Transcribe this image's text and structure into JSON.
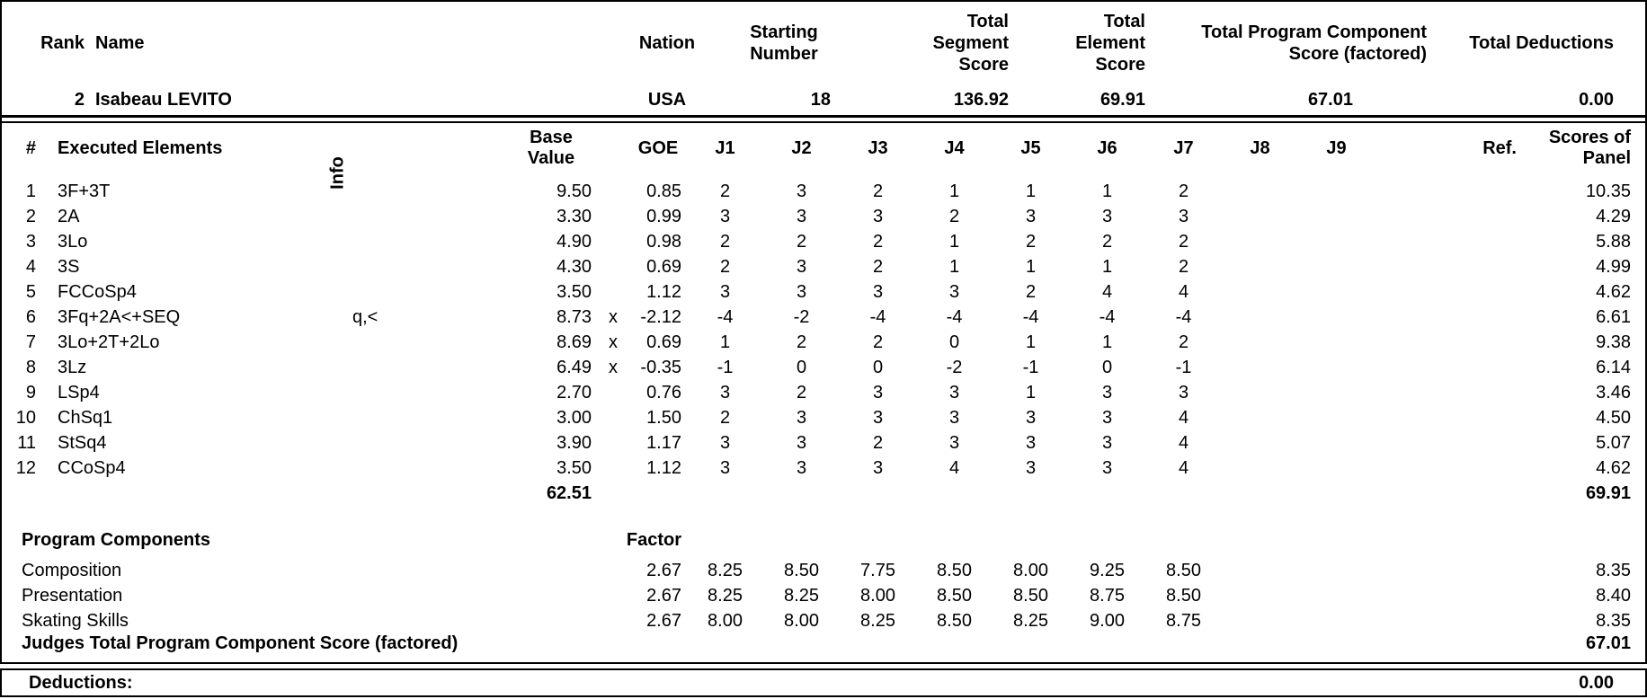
{
  "header": {
    "rank_label": "Rank",
    "name_label": "Name",
    "nation_label": "Nation",
    "starting_label": "Starting\nNumber",
    "segment_label": "Total\nSegment\nScore",
    "element_label": "Total\nElement\nScore",
    "pcs_label": "Total Program Component\nScore (factored)",
    "deductions_label": "Total Deductions"
  },
  "athlete": {
    "rank": "2",
    "name": "Isabeau LEVITO",
    "nation": "USA",
    "starting_number": "18",
    "total_segment_score": "136.92",
    "total_element_score": "69.91",
    "total_pcs_factored": "67.01",
    "total_deductions": "0.00"
  },
  "elements": {
    "headers": {
      "num": "#",
      "executed": "Executed Elements",
      "info": "Info",
      "base_value": "Base\nValue",
      "goe": "GOE",
      "j1": "J1",
      "j2": "J2",
      "j3": "J3",
      "j4": "J4",
      "j5": "J5",
      "j6": "J6",
      "j7": "J7",
      "j8": "J8",
      "j9": "J9",
      "ref": "Ref.",
      "panel": "Scores of\nPanel"
    },
    "rows": [
      {
        "num": "1",
        "name": "3F+3T",
        "info": "",
        "base_value": "9.50",
        "x": "",
        "goe": "0.85",
        "j": [
          "2",
          "3",
          "2",
          "1",
          "1",
          "1",
          "2"
        ],
        "panel": "10.35"
      },
      {
        "num": "2",
        "name": "2A",
        "info": "",
        "base_value": "3.30",
        "x": "",
        "goe": "0.99",
        "j": [
          "3",
          "3",
          "3",
          "2",
          "3",
          "3",
          "3"
        ],
        "panel": "4.29"
      },
      {
        "num": "3",
        "name": "3Lo",
        "info": "",
        "base_value": "4.90",
        "x": "",
        "goe": "0.98",
        "j": [
          "2",
          "2",
          "2",
          "1",
          "2",
          "2",
          "2"
        ],
        "panel": "5.88"
      },
      {
        "num": "4",
        "name": "3S",
        "info": "",
        "base_value": "4.30",
        "x": "",
        "goe": "0.69",
        "j": [
          "2",
          "3",
          "2",
          "1",
          "1",
          "1",
          "2"
        ],
        "panel": "4.99"
      },
      {
        "num": "5",
        "name": "FCCoSp4",
        "info": "",
        "base_value": "3.50",
        "x": "",
        "goe": "1.12",
        "j": [
          "3",
          "3",
          "3",
          "3",
          "2",
          "4",
          "4"
        ],
        "panel": "4.62"
      },
      {
        "num": "6",
        "name": "3Fq+2A<+SEQ",
        "info": "q,<",
        "base_value": "8.73",
        "x": "x",
        "goe": "-2.12",
        "j": [
          "-4",
          "-2",
          "-4",
          "-4",
          "-4",
          "-4",
          "-4"
        ],
        "panel": "6.61"
      },
      {
        "num": "7",
        "name": "3Lo+2T+2Lo",
        "info": "",
        "base_value": "8.69",
        "x": "x",
        "goe": "0.69",
        "j": [
          "1",
          "2",
          "2",
          "0",
          "1",
          "1",
          "2"
        ],
        "panel": "9.38"
      },
      {
        "num": "8",
        "name": "3Lz",
        "info": "",
        "base_value": "6.49",
        "x": "x",
        "goe": "-0.35",
        "j": [
          "-1",
          "0",
          "0",
          "-2",
          "-1",
          "0",
          "-1"
        ],
        "panel": "6.14"
      },
      {
        "num": "9",
        "name": "LSp4",
        "info": "",
        "base_value": "2.70",
        "x": "",
        "goe": "0.76",
        "j": [
          "3",
          "2",
          "3",
          "3",
          "1",
          "3",
          "3"
        ],
        "panel": "3.46"
      },
      {
        "num": "10",
        "name": "ChSq1",
        "info": "",
        "base_value": "3.00",
        "x": "",
        "goe": "1.50",
        "j": [
          "2",
          "3",
          "3",
          "3",
          "3",
          "3",
          "4"
        ],
        "panel": "4.50"
      },
      {
        "num": "11",
        "name": "StSq4",
        "info": "",
        "base_value": "3.90",
        "x": "",
        "goe": "1.17",
        "j": [
          "3",
          "3",
          "2",
          "3",
          "3",
          "3",
          "4"
        ],
        "panel": "5.07"
      },
      {
        "num": "12",
        "name": "CCoSp4",
        "info": "",
        "base_value": "3.50",
        "x": "",
        "goe": "1.12",
        "j": [
          "3",
          "3",
          "3",
          "4",
          "3",
          "3",
          "4"
        ],
        "panel": "4.62"
      }
    ],
    "base_value_total": "62.51",
    "panel_total": "69.91"
  },
  "components": {
    "title": "Program Components",
    "factor_label": "Factor",
    "rows": [
      {
        "name": "Composition",
        "factor": "2.67",
        "j": [
          "8.25",
          "8.50",
          "7.75",
          "8.50",
          "8.00",
          "9.25",
          "8.50"
        ],
        "score": "8.35"
      },
      {
        "name": "Presentation",
        "factor": "2.67",
        "j": [
          "8.25",
          "8.25",
          "8.00",
          "8.50",
          "8.50",
          "8.75",
          "8.50"
        ],
        "score": "8.40"
      },
      {
        "name": "Skating Skills",
        "factor": "2.67",
        "j": [
          "8.00",
          "8.00",
          "8.25",
          "8.50",
          "8.25",
          "9.00",
          "8.75"
        ],
        "score": "8.35"
      }
    ],
    "total_label": "Judges Total Program Component Score (factored)",
    "total": "67.01"
  },
  "deductions": {
    "label": "Deductions:",
    "value": "0.00"
  }
}
